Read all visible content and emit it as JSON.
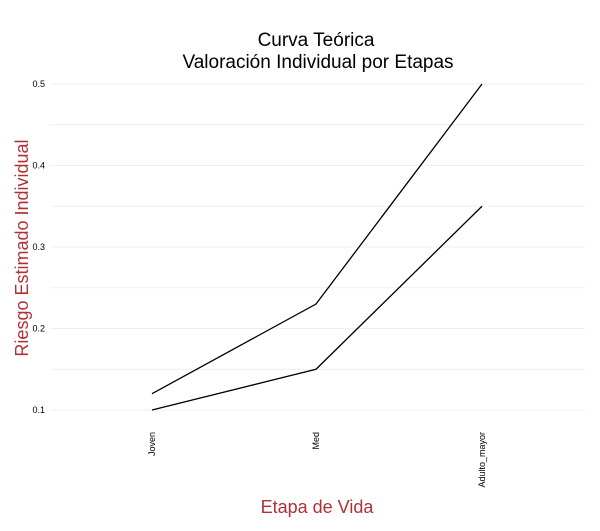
{
  "chart_data": {
    "type": "line",
    "title": "Curva Teórica",
    "subtitle": "Valoración Individual por Etapas",
    "xlabel": "Etapa de Vida",
    "ylabel": "Riesgo Estimado Individual",
    "categories": [
      "Joven",
      "Med",
      "Adulto_mayor"
    ],
    "series": [
      {
        "values": [
          0.12,
          0.23,
          0.5
        ]
      },
      {
        "values": [
          0.1,
          0.15,
          0.35
        ]
      }
    ],
    "ylim": [
      0.1,
      0.5
    ],
    "yticks": [
      "0.1",
      "0.2",
      "0.3",
      "0.4",
      "0.5"
    ],
    "ytick_values": [
      0.1,
      0.2,
      0.3,
      0.4,
      0.5
    ],
    "grid": true,
    "legend": "none",
    "colors": {
      "line": "#000000",
      "axis_label": "#b03038",
      "grid": "#efefef"
    }
  }
}
